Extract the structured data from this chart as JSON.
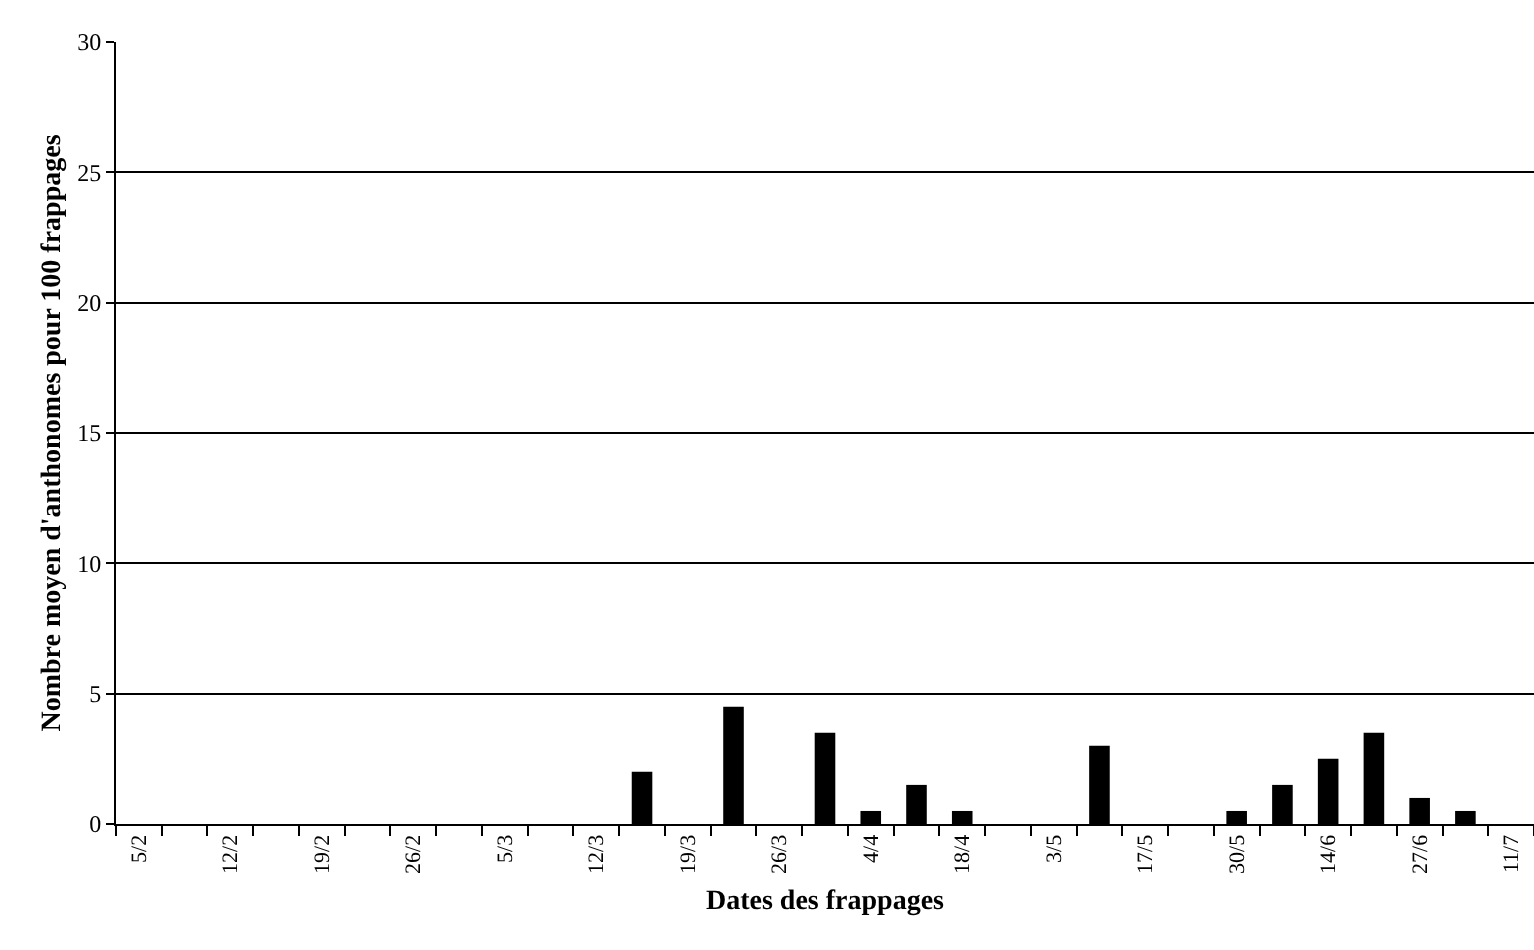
{
  "chart_data": {
    "type": "bar",
    "categories": [
      "5/2",
      null,
      "12/2",
      null,
      "19/2",
      null,
      "26/2",
      null,
      "5/3",
      null,
      "12/3",
      null,
      "19/3",
      null,
      "26/3",
      null,
      "4/4",
      null,
      "18/4",
      null,
      "3/5",
      null,
      "17/5",
      null,
      "30/5",
      null,
      "14/6",
      null,
      "27/6",
      null,
      "11/7"
    ],
    "values": [
      0,
      0,
      0,
      0,
      0,
      0,
      0,
      0,
      0,
      0,
      0,
      2,
      0,
      4.5,
      0,
      3.5,
      0.5,
      1.5,
      0.5,
      0,
      0,
      3,
      0,
      0,
      0.5,
      1.5,
      2.5,
      3.5,
      1,
      0.5,
      0
    ],
    "color": "#000000",
    "xlabel": "Dates des frappages",
    "ylabel": "Nombre moyen d'anthonomes pour 100 frappages",
    "ylim": [
      0,
      30
    ],
    "yticks": [
      0,
      5,
      10,
      15,
      20,
      25,
      30
    ],
    "grid": "y",
    "legend": false
  }
}
